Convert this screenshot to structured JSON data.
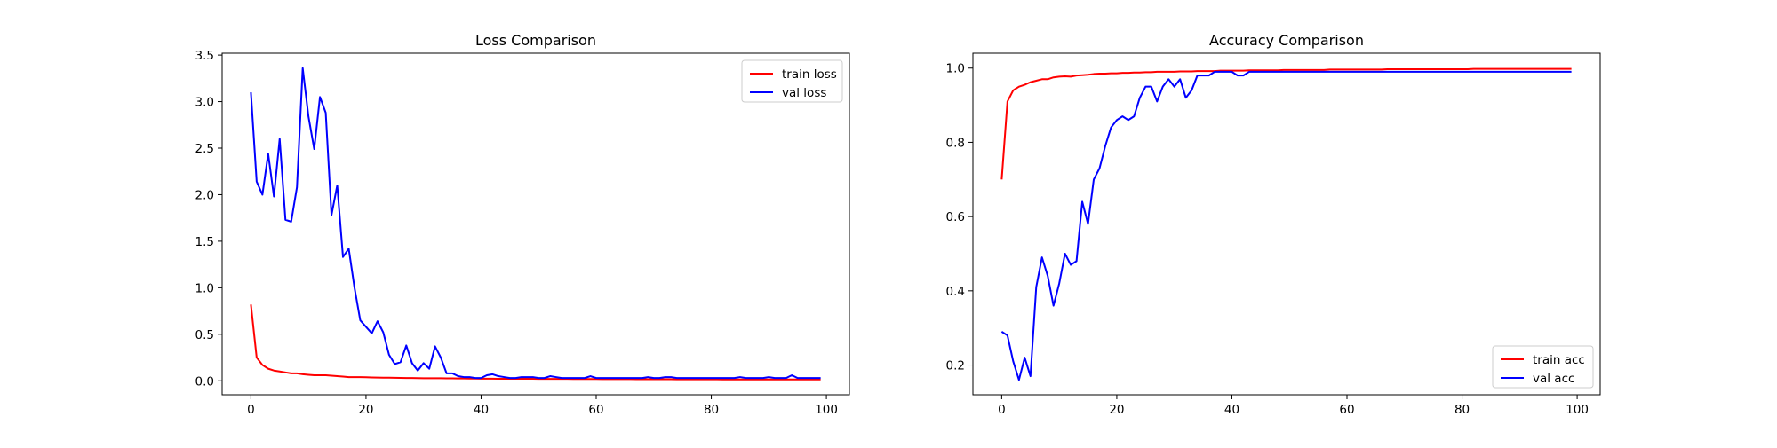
{
  "chart_data": [
    {
      "type": "line",
      "title": "Loss Comparison",
      "xlabel": "",
      "ylabel": "",
      "xlim": [
        -5,
        104
      ],
      "ylim": [
        -0.15,
        3.52
      ],
      "xticks": [
        0,
        20,
        40,
        60,
        80,
        100
      ],
      "yticks": [
        0.0,
        0.5,
        1.0,
        1.5,
        2.0,
        2.5,
        3.0,
        3.5
      ],
      "xtick_labels": [
        "0",
        "20",
        "40",
        "60",
        "80",
        "100"
      ],
      "ytick_labels": [
        "0.0",
        "0.5",
        "1.0",
        "1.5",
        "2.0",
        "2.5",
        "3.0",
        "3.5"
      ],
      "grid": false,
      "legend_placement": "top-right",
      "x": [
        0,
        1,
        2,
        3,
        4,
        5,
        6,
        7,
        8,
        9,
        10,
        11,
        12,
        13,
        14,
        15,
        16,
        17,
        18,
        19,
        20,
        21,
        22,
        23,
        24,
        25,
        26,
        27,
        28,
        29,
        30,
        31,
        32,
        33,
        34,
        35,
        36,
        37,
        38,
        39,
        40,
        41,
        42,
        43,
        44,
        45,
        46,
        47,
        48,
        49,
        50,
        51,
        52,
        53,
        54,
        55,
        56,
        57,
        58,
        59,
        60,
        61,
        62,
        63,
        64,
        65,
        66,
        67,
        68,
        69,
        70,
        71,
        72,
        73,
        74,
        75,
        76,
        77,
        78,
        79,
        80,
        81,
        82,
        83,
        84,
        85,
        86,
        87,
        88,
        89,
        90,
        91,
        92,
        93,
        94,
        95,
        96,
        97,
        98,
        99
      ],
      "series": [
        {
          "name": "train loss",
          "color": "#ff0000",
          "values": [
            0.82,
            0.25,
            0.17,
            0.13,
            0.11,
            0.1,
            0.09,
            0.08,
            0.08,
            0.07,
            0.065,
            0.06,
            0.06,
            0.06,
            0.055,
            0.05,
            0.045,
            0.04,
            0.04,
            0.04,
            0.038,
            0.036,
            0.035,
            0.034,
            0.033,
            0.032,
            0.031,
            0.03,
            0.03,
            0.029,
            0.028,
            0.028,
            0.027,
            0.027,
            0.026,
            0.026,
            0.025,
            0.025,
            0.024,
            0.024,
            0.023,
            0.023,
            0.023,
            0.022,
            0.022,
            0.022,
            0.021,
            0.021,
            0.021,
            0.021,
            0.02,
            0.02,
            0.02,
            0.02,
            0.02,
            0.02,
            0.019,
            0.019,
            0.019,
            0.019,
            0.019,
            0.018,
            0.018,
            0.018,
            0.018,
            0.018,
            0.018,
            0.017,
            0.017,
            0.017,
            0.017,
            0.017,
            0.017,
            0.017,
            0.016,
            0.016,
            0.016,
            0.016,
            0.016,
            0.016,
            0.016,
            0.016,
            0.015,
            0.015,
            0.015,
            0.015,
            0.015,
            0.015,
            0.015,
            0.015,
            0.015,
            0.015,
            0.014,
            0.014,
            0.014,
            0.014,
            0.014,
            0.014,
            0.014,
            0.014
          ]
        },
        {
          "name": "val loss",
          "color": "#0000ff",
          "values": [
            3.1,
            2.14,
            2.0,
            2.44,
            1.98,
            2.6,
            1.73,
            1.71,
            2.08,
            3.36,
            2.84,
            2.49,
            3.05,
            2.88,
            1.78,
            2.1,
            1.33,
            1.42,
            1.0,
            0.65,
            0.58,
            0.51,
            0.64,
            0.52,
            0.28,
            0.18,
            0.2,
            0.38,
            0.19,
            0.11,
            0.19,
            0.13,
            0.37,
            0.25,
            0.08,
            0.08,
            0.05,
            0.04,
            0.04,
            0.03,
            0.03,
            0.06,
            0.07,
            0.05,
            0.04,
            0.03,
            0.03,
            0.04,
            0.04,
            0.04,
            0.03,
            0.03,
            0.05,
            0.04,
            0.03,
            0.03,
            0.03,
            0.03,
            0.03,
            0.05,
            0.03,
            0.03,
            0.03,
            0.03,
            0.03,
            0.03,
            0.03,
            0.03,
            0.03,
            0.04,
            0.03,
            0.03,
            0.04,
            0.04,
            0.03,
            0.03,
            0.03,
            0.03,
            0.03,
            0.03,
            0.03,
            0.03,
            0.03,
            0.03,
            0.03,
            0.04,
            0.03,
            0.03,
            0.03,
            0.03,
            0.04,
            0.03,
            0.03,
            0.03,
            0.06,
            0.03,
            0.03,
            0.03,
            0.03,
            0.03
          ]
        }
      ]
    },
    {
      "type": "line",
      "title": "Accuracy Comparison",
      "xlabel": "",
      "ylabel": "",
      "xlim": [
        -5,
        104
      ],
      "ylim": [
        0.12,
        1.04
      ],
      "xticks": [
        0,
        20,
        40,
        60,
        80,
        100
      ],
      "yticks": [
        0.2,
        0.4,
        0.6,
        0.8,
        1.0
      ],
      "xtick_labels": [
        "0",
        "20",
        "40",
        "60",
        "80",
        "100"
      ],
      "ytick_labels": [
        "0.2",
        "0.4",
        "0.6",
        "0.8",
        "1.0"
      ],
      "grid": false,
      "legend_placement": "bottom-right",
      "x": [
        0,
        1,
        2,
        3,
        4,
        5,
        6,
        7,
        8,
        9,
        10,
        11,
        12,
        13,
        14,
        15,
        16,
        17,
        18,
        19,
        20,
        21,
        22,
        23,
        24,
        25,
        26,
        27,
        28,
        29,
        30,
        31,
        32,
        33,
        34,
        35,
        36,
        37,
        38,
        39,
        40,
        41,
        42,
        43,
        44,
        45,
        46,
        47,
        48,
        49,
        50,
        51,
        52,
        53,
        54,
        55,
        56,
        57,
        58,
        59,
        60,
        61,
        62,
        63,
        64,
        65,
        66,
        67,
        68,
        69,
        70,
        71,
        72,
        73,
        74,
        75,
        76,
        77,
        78,
        79,
        80,
        81,
        82,
        83,
        84,
        85,
        86,
        87,
        88,
        89,
        90,
        91,
        92,
        93,
        94,
        95,
        96,
        97,
        98,
        99
      ],
      "series": [
        {
          "name": "train acc",
          "color": "#ff0000",
          "values": [
            0.7,
            0.91,
            0.94,
            0.95,
            0.955,
            0.962,
            0.966,
            0.97,
            0.97,
            0.975,
            0.977,
            0.978,
            0.977,
            0.98,
            0.981,
            0.982,
            0.984,
            0.985,
            0.985,
            0.986,
            0.986,
            0.987,
            0.987,
            0.988,
            0.988,
            0.989,
            0.989,
            0.99,
            0.99,
            0.99,
            0.99,
            0.991,
            0.991,
            0.991,
            0.992,
            0.992,
            0.992,
            0.992,
            0.993,
            0.993,
            0.993,
            0.993,
            0.993,
            0.994,
            0.994,
            0.994,
            0.994,
            0.994,
            0.994,
            0.995,
            0.995,
            0.995,
            0.995,
            0.995,
            0.995,
            0.995,
            0.995,
            0.996,
            0.996,
            0.996,
            0.996,
            0.996,
            0.996,
            0.996,
            0.996,
            0.996,
            0.996,
            0.997,
            0.997,
            0.997,
            0.997,
            0.997,
            0.997,
            0.997,
            0.997,
            0.997,
            0.997,
            0.997,
            0.997,
            0.997,
            0.997,
            0.997,
            0.998,
            0.998,
            0.998,
            0.998,
            0.998,
            0.998,
            0.998,
            0.998,
            0.998,
            0.998,
            0.998,
            0.998,
            0.998,
            0.998,
            0.998,
            0.998,
            0.998,
            0.998
          ]
        },
        {
          "name": "val acc",
          "color": "#0000ff",
          "values": [
            0.29,
            0.28,
            0.21,
            0.16,
            0.22,
            0.17,
            0.41,
            0.49,
            0.44,
            0.36,
            0.42,
            0.5,
            0.47,
            0.48,
            0.64,
            0.58,
            0.7,
            0.73,
            0.79,
            0.84,
            0.86,
            0.87,
            0.86,
            0.87,
            0.92,
            0.95,
            0.95,
            0.91,
            0.95,
            0.97,
            0.95,
            0.97,
            0.92,
            0.94,
            0.98,
            0.98,
            0.98,
            0.99,
            0.99,
            0.99,
            0.99,
            0.98,
            0.98,
            0.99,
            0.99,
            0.99,
            0.99,
            0.99,
            0.99,
            0.99,
            0.99,
            0.99,
            0.99,
            0.99,
            0.99,
            0.99,
            0.99,
            0.99,
            0.99,
            0.99,
            0.99,
            0.99,
            0.99,
            0.99,
            0.99,
            0.99,
            0.99,
            0.99,
            0.99,
            0.99,
            0.99,
            0.99,
            0.99,
            0.99,
            0.99,
            0.99,
            0.99,
            0.99,
            0.99,
            0.99,
            0.99,
            0.99,
            0.99,
            0.99,
            0.99,
            0.99,
            0.99,
            0.99,
            0.99,
            0.99,
            0.99,
            0.99,
            0.99,
            0.99,
            0.99,
            0.99,
            0.99,
            0.99,
            0.99,
            0.99
          ]
        }
      ]
    }
  ]
}
